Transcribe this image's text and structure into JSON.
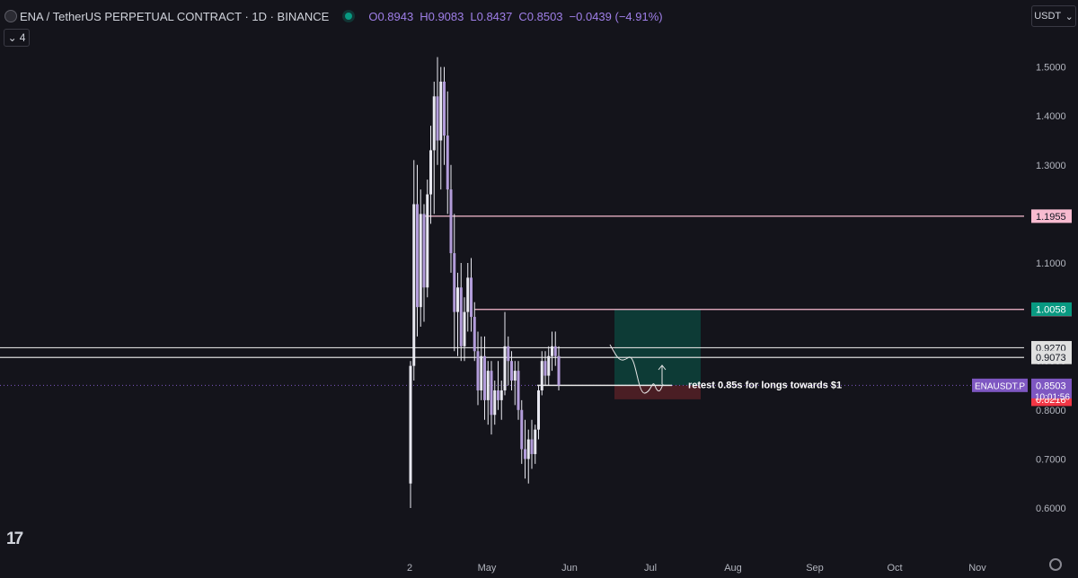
{
  "header": {
    "symbol": "ENA / TetherUS PERPETUAL CONTRACT · 1D · BINANCE",
    "open": "O0.8943",
    "high": "H0.9083",
    "low": "L0.8437",
    "close": "C0.8503",
    "change": "−0.0439 (−4.91%)",
    "indicator_count": "4",
    "currency": "USDT"
  },
  "colors": {
    "background": "#14141b",
    "candle": "#b39ddb",
    "accent": "#7e57c2",
    "level_line": "#f8bbd0",
    "target_zone": "#0d3b36",
    "stop_zone": "#4a1e24",
    "green_label": "#089981",
    "red_label": "#f23645"
  },
  "chart_data": {
    "type": "candlestick",
    "title": "ENA / TetherUS PERPETUAL CONTRACT · 1D · BINANCE",
    "y_ticks": [
      0.6,
      0.7,
      0.8,
      0.9,
      1.0,
      1.1,
      1.2,
      1.3,
      1.4,
      1.5
    ],
    "y_tick_labels": [
      "0.6000",
      "0.7000",
      "0.8000",
      "0.9000",
      "1.0000",
      "1.1000",
      "1.2000",
      "1.3000",
      "1.4000",
      "1.5000"
    ],
    "x_tick_labels": [
      "2",
      "May",
      "Jun",
      "Jul",
      "Aug",
      "Sep",
      "Oct",
      "Nov"
    ],
    "ylim": [
      0.5,
      1.6
    ],
    "candles": [
      {
        "o": 0.65,
        "h": 0.9,
        "l": 0.6,
        "c": 0.89
      },
      {
        "o": 0.89,
        "h": 1.31,
        "l": 0.86,
        "c": 1.22
      },
      {
        "o": 1.22,
        "h": 1.3,
        "l": 0.95,
        "c": 1.01
      },
      {
        "o": 1.01,
        "h": 1.25,
        "l": 0.97,
        "c": 1.2
      },
      {
        "o": 1.2,
        "h": 1.22,
        "l": 0.98,
        "c": 1.05
      },
      {
        "o": 1.05,
        "h": 1.27,
        "l": 1.03,
        "c": 1.24
      },
      {
        "o": 1.24,
        "h": 1.38,
        "l": 1.18,
        "c": 1.33
      },
      {
        "o": 1.33,
        "h": 1.47,
        "l": 1.2,
        "c": 1.44
      },
      {
        "o": 1.44,
        "h": 1.52,
        "l": 1.3,
        "c": 1.35
      },
      {
        "o": 1.35,
        "h": 1.5,
        "l": 1.25,
        "c": 1.47
      },
      {
        "o": 1.47,
        "h": 1.5,
        "l": 1.3,
        "c": 1.36
      },
      {
        "o": 1.36,
        "h": 1.45,
        "l": 1.2,
        "c": 1.25
      },
      {
        "o": 1.25,
        "h": 1.3,
        "l": 1.08,
        "c": 1.12
      },
      {
        "o": 1.12,
        "h": 1.2,
        "l": 0.92,
        "c": 1.0
      },
      {
        "o": 1.0,
        "h": 1.08,
        "l": 0.91,
        "c": 1.05
      },
      {
        "o": 1.05,
        "h": 1.1,
        "l": 0.9,
        "c": 0.93
      },
      {
        "o": 0.93,
        "h": 1.03,
        "l": 0.9,
        "c": 1.0
      },
      {
        "o": 1.0,
        "h": 1.1,
        "l": 0.96,
        "c": 1.07
      },
      {
        "o": 1.07,
        "h": 1.11,
        "l": 0.96,
        "c": 0.99
      },
      {
        "o": 0.99,
        "h": 1.02,
        "l": 0.9,
        "c": 0.92
      },
      {
        "o": 0.92,
        "h": 0.96,
        "l": 0.81,
        "c": 0.84
      },
      {
        "o": 0.84,
        "h": 0.95,
        "l": 0.82,
        "c": 0.91
      },
      {
        "o": 0.91,
        "h": 0.95,
        "l": 0.78,
        "c": 0.82
      },
      {
        "o": 0.82,
        "h": 0.9,
        "l": 0.77,
        "c": 0.88
      },
      {
        "o": 0.88,
        "h": 0.9,
        "l": 0.75,
        "c": 0.79
      },
      {
        "o": 0.79,
        "h": 0.86,
        "l": 0.77,
        "c": 0.84
      },
      {
        "o": 0.84,
        "h": 0.9,
        "l": 0.8,
        "c": 0.82
      },
      {
        "o": 0.82,
        "h": 0.86,
        "l": 0.78,
        "c": 0.84
      },
      {
        "o": 0.84,
        "h": 1.0,
        "l": 0.83,
        "c": 0.93
      },
      {
        "o": 0.93,
        "h": 0.95,
        "l": 0.85,
        "c": 0.9
      },
      {
        "o": 0.9,
        "h": 0.92,
        "l": 0.84,
        "c": 0.86
      },
      {
        "o": 0.86,
        "h": 0.9,
        "l": 0.81,
        "c": 0.88
      },
      {
        "o": 0.88,
        "h": 0.9,
        "l": 0.78,
        "c": 0.8
      },
      {
        "o": 0.8,
        "h": 0.82,
        "l": 0.69,
        "c": 0.72
      },
      {
        "o": 0.72,
        "h": 0.78,
        "l": 0.66,
        "c": 0.7
      },
      {
        "o": 0.7,
        "h": 0.76,
        "l": 0.65,
        "c": 0.74
      },
      {
        "o": 0.74,
        "h": 0.78,
        "l": 0.68,
        "c": 0.71
      },
      {
        "o": 0.71,
        "h": 0.77,
        "l": 0.69,
        "c": 0.76
      },
      {
        "o": 0.76,
        "h": 0.85,
        "l": 0.74,
        "c": 0.84
      },
      {
        "o": 0.84,
        "h": 0.92,
        "l": 0.83,
        "c": 0.9
      },
      {
        "o": 0.9,
        "h": 0.92,
        "l": 0.85,
        "c": 0.87
      },
      {
        "o": 0.87,
        "h": 0.93,
        "l": 0.85,
        "c": 0.91
      },
      {
        "o": 0.91,
        "h": 0.96,
        "l": 0.88,
        "c": 0.93
      },
      {
        "o": 0.93,
        "h": 0.96,
        "l": 0.89,
        "c": 0.91
      },
      {
        "o": 0.91,
        "h": 0.93,
        "l": 0.84,
        "c": 0.85
      }
    ],
    "horizontal_levels": [
      {
        "value": 1.1955,
        "label": "1.1955",
        "kind": "pink",
        "from_candle": 4
      },
      {
        "value": 1.0052,
        "label": "1.0052",
        "kind": "pink",
        "from_candle": 19
      },
      {
        "value": 0.927,
        "label": "0.9270",
        "kind": "white",
        "from_candle": -1
      },
      {
        "value": 0.9073,
        "label": "0.9073",
        "kind": "white",
        "from_candle": -1
      }
    ],
    "price_labels": [
      {
        "value": 1.0058,
        "label": "1.0058",
        "kind": "green"
      },
      {
        "value": 0.8481,
        "label": "0.8481",
        "kind": "gray"
      },
      {
        "value": 0.8218,
        "label": "0.8218",
        "kind": "red"
      }
    ],
    "last_price": {
      "value": 0.8503,
      "label": "0.8503",
      "ticker": "ENAUSDT.P",
      "countdown": "10:01:56"
    },
    "position": {
      "entry": 0.8503,
      "target": 1.0058,
      "stop": 0.8218
    },
    "annotation": "retest 0.85s for longs towards $1"
  }
}
